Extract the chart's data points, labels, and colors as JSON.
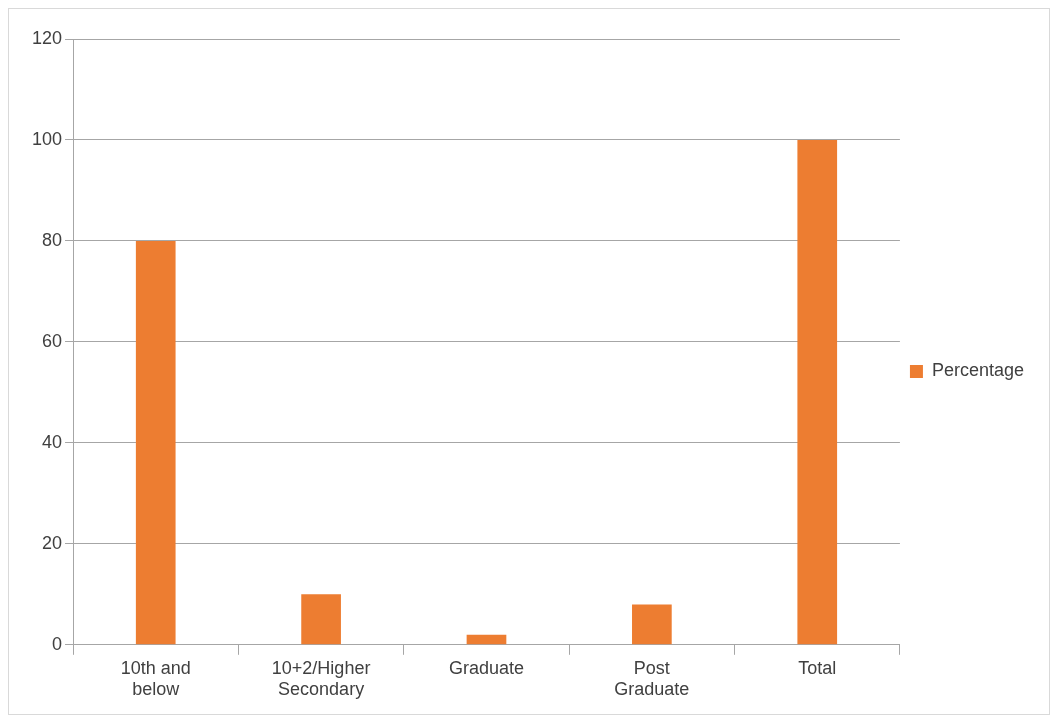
{
  "chart_data": {
    "type": "bar",
    "categories": [
      "10th and below",
      "10+2/Higher Secondary",
      "Graduate",
      "Post Graduate",
      "Total"
    ],
    "series": [
      {
        "name": "Percentage",
        "color": "#ed7d31",
        "values": [
          80,
          10,
          2,
          8,
          100
        ]
      }
    ],
    "ylim": [
      0,
      120
    ],
    "yticks": [
      0,
      20,
      40,
      60,
      80,
      100,
      120
    ],
    "grid": "y",
    "legend": "right"
  }
}
